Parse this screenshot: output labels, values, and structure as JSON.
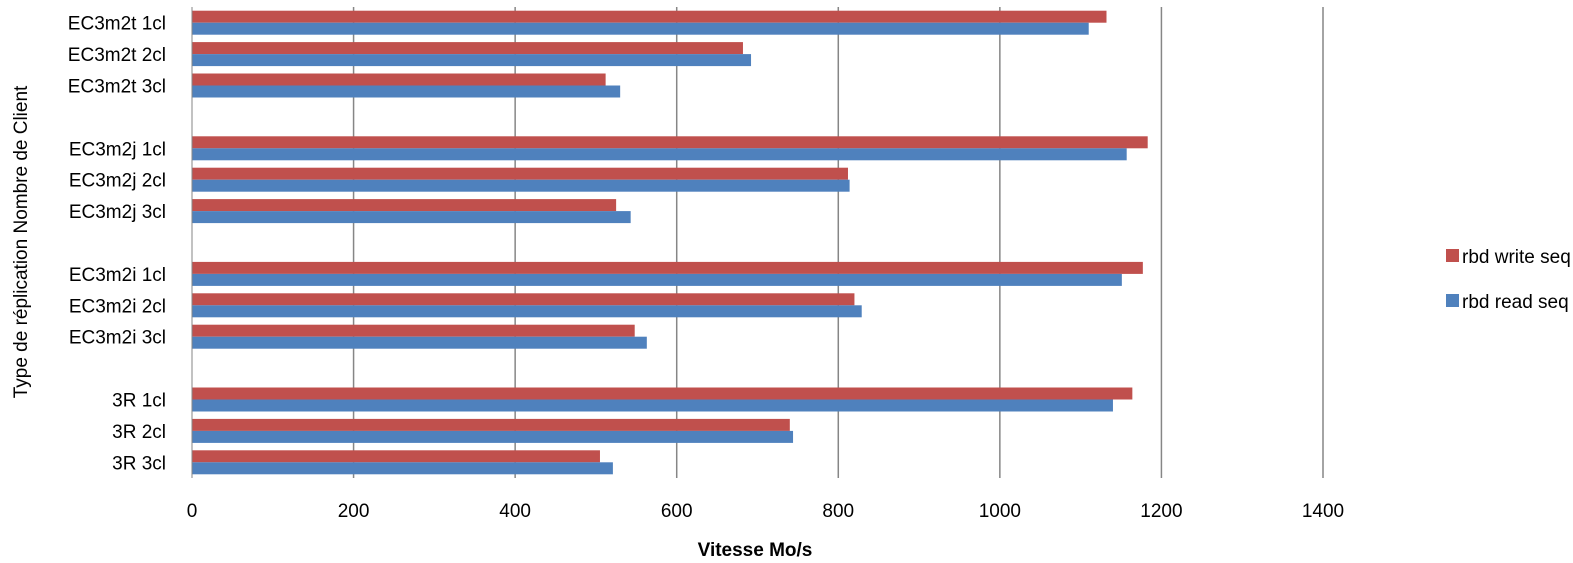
{
  "chart_data": {
    "type": "bar",
    "orientation": "horizontal",
    "xlabel": "Vitesse Mo/s",
    "ylabel": "Type de réplication Nombre de Client",
    "xlim": [
      0,
      1400
    ],
    "x_ticks": [
      0,
      200,
      400,
      600,
      800,
      1000,
      1200,
      1400
    ],
    "grid": "vertical",
    "legend_position": "right",
    "categories": [
      "EC3m2t 1cl",
      "EC3m2t 2cl",
      "EC3m2t 3cl",
      "",
      "EC3m2j 1cl",
      "EC3m2j 2cl",
      "EC3m2j 3cl",
      "",
      "EC3m2i 1cl",
      "EC3m2i 2cl",
      "EC3m2i 3cl",
      "",
      "3R 1cl",
      "3R 2cl",
      "3R 3cl"
    ],
    "series": [
      {
        "name": "rbd write seq",
        "color": "#C0504D",
        "values": [
          1132,
          682,
          512,
          null,
          1183,
          812,
          525,
          null,
          1177,
          820,
          548,
          null,
          1164,
          740,
          505
        ]
      },
      {
        "name": "rbd read seq",
        "color": "#4F81BD",
        "values": [
          1110,
          692,
          530,
          null,
          1157,
          814,
          543,
          null,
          1151,
          829,
          563,
          null,
          1140,
          744,
          521
        ]
      }
    ]
  }
}
